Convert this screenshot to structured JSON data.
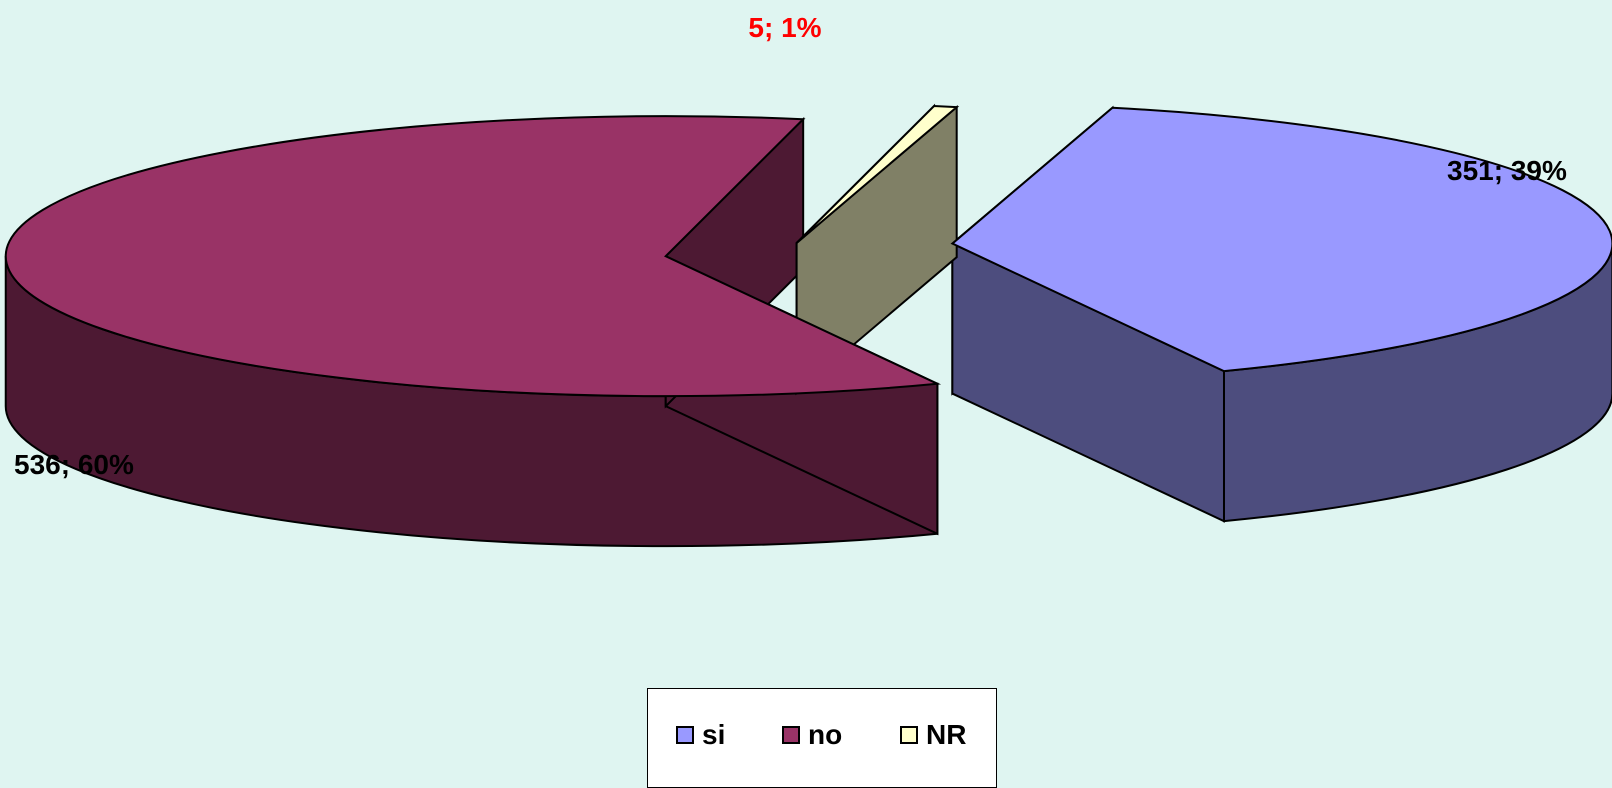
{
  "chart_data": {
    "type": "pie",
    "style": "3d-exploded",
    "slices": [
      {
        "category": "si",
        "value": 351,
        "percent": 39,
        "label": "351; 39%",
        "color": "#9999ff",
        "side_color": "#4d4d7e"
      },
      {
        "category": "no",
        "value": 536,
        "percent": 60,
        "label": "536; 60%",
        "color": "#993366",
        "side_color": "#4d1933"
      },
      {
        "category": "NR",
        "value": 5,
        "percent": 1,
        "label": "5; 1%",
        "color": "#ffffcc",
        "side_color": "#808066",
        "label_color": "#ff0000"
      }
    ],
    "legend": {
      "placement": "bottom",
      "entries": [
        "si",
        "no",
        "NR"
      ]
    }
  },
  "colors": {
    "background": "#dff5f1",
    "outline": "#000000"
  }
}
